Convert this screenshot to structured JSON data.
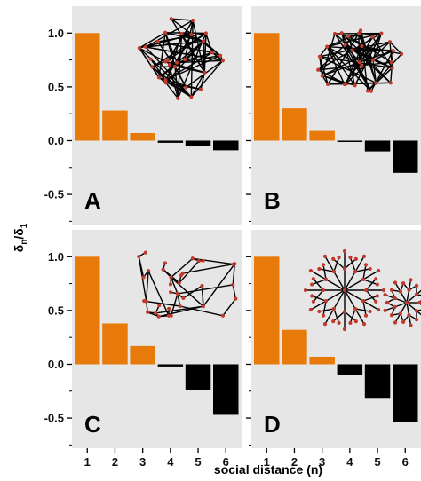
{
  "figure": {
    "xlabel": "social distance (n)",
    "ylabel_main": "δ",
    "ylabel_sub_num": "n",
    "ylabel_sub_den": "1",
    "ylabel_slash": "/δ"
  },
  "chart_data": [
    {
      "type": "bar",
      "panel_label": "A",
      "categories": [
        "1",
        "2",
        "3",
        "4",
        "5",
        "6"
      ],
      "values": [
        1.0,
        0.28,
        0.07,
        -0.02,
        -0.05,
        -0.09
      ],
      "yticks": [
        "1.0",
        "0.5",
        "0.0",
        "-0.5"
      ],
      "ytick_values": [
        1.0,
        0.5,
        0.0,
        -0.5
      ],
      "ylim": [
        -0.78,
        1.25
      ],
      "positive_color": "#E87A0A",
      "negative_color": "#000000",
      "background": "#E6E6E6",
      "inset": "random network"
    },
    {
      "type": "bar",
      "panel_label": "B",
      "categories": [
        "1",
        "2",
        "3",
        "4",
        "5",
        "6"
      ],
      "values": [
        1.0,
        0.3,
        0.09,
        -0.01,
        -0.1,
        -0.3
      ],
      "yticks": [
        "1.0",
        "0.5",
        "0.0",
        "-0.5"
      ],
      "ytick_values": [
        1.0,
        0.5,
        0.0,
        -0.5
      ],
      "ylim": [
        -0.78,
        1.25
      ],
      "positive_color": "#E87A0A",
      "negative_color": "#000000",
      "background": "#E6E6E6",
      "inset": "random network"
    },
    {
      "type": "bar",
      "panel_label": "C",
      "categories": [
        "1",
        "2",
        "3",
        "4",
        "5",
        "6"
      ],
      "values": [
        1.0,
        0.38,
        0.17,
        -0.02,
        -0.24,
        -0.47
      ],
      "yticks": [
        "1.0",
        "0.5",
        "0.0",
        "-0.5"
      ],
      "ytick_values": [
        1.0,
        0.5,
        0.0,
        -0.5
      ],
      "ylim": [
        -0.78,
        1.25
      ],
      "positive_color": "#E87A0A",
      "negative_color": "#000000",
      "background": "#E6E6E6",
      "inset": "sparse network"
    },
    {
      "type": "bar",
      "panel_label": "D",
      "categories": [
        "1",
        "2",
        "3",
        "4",
        "5",
        "6"
      ],
      "values": [
        1.0,
        0.32,
        0.07,
        -0.1,
        -0.32,
        -0.54
      ],
      "yticks": [
        "1.0",
        "0.5",
        "0.0",
        "-0.5"
      ],
      "ytick_values": [
        1.0,
        0.5,
        0.0,
        -0.5
      ],
      "ylim": [
        -0.78,
        1.25
      ],
      "positive_color": "#E87A0A",
      "negative_color": "#000000",
      "background": "#E6E6E6",
      "inset": "star network"
    }
  ]
}
